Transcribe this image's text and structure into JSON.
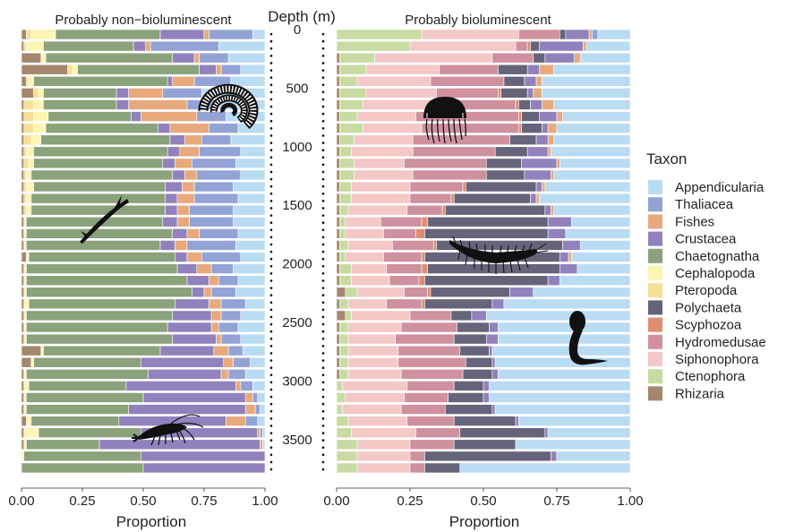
{
  "chart_data": {
    "type": "bar",
    "orientation": "horizontal-stacked-proportion",
    "xlabel": "Proportion",
    "x_ticks": [
      "0.00",
      "0.25",
      "0.50",
      "0.75",
      "1.00"
    ],
    "xlim": [
      0,
      1
    ],
    "depth_label": "Depth (m)",
    "depth_ticks": [
      "0",
      "500",
      "1000",
      "1500",
      "2000",
      "2500",
      "3000",
      "3500"
    ],
    "depth_tick_values": [
      0,
      500,
      1000,
      1500,
      2000,
      2500,
      3000,
      3500
    ],
    "depth_range": [
      0,
      3800
    ],
    "bin_size": 100,
    "legend_title": "Taxon",
    "legend_position": "right",
    "taxa": [
      {
        "name": "Appendicularia",
        "color": "#b9dcf3"
      },
      {
        "name": "Thaliacea",
        "color": "#94a3d6"
      },
      {
        "name": "Fishes",
        "color": "#e8a97c"
      },
      {
        "name": "Crustacea",
        "color": "#9182bd"
      },
      {
        "name": "Chaetognatha",
        "color": "#8ba27c"
      },
      {
        "name": "Cephalopoda",
        "color": "#fcf5b3"
      },
      {
        "name": "Pteropoda",
        "color": "#f6df97"
      },
      {
        "name": "Polychaeta",
        "color": "#65647a"
      },
      {
        "name": "Scyphozoa",
        "color": "#df8c72"
      },
      {
        "name": "Hydromedusae",
        "color": "#cf919e"
      },
      {
        "name": "Siphonophora",
        "color": "#f3c8c7"
      },
      {
        "name": "Ctenophora",
        "color": "#c8dba2"
      },
      {
        "name": "Rhizaria",
        "color": "#a4876c"
      }
    ],
    "panels": [
      {
        "title": "Probably non−bioluminescent",
        "stack_order": [
          "Rhizaria",
          "Pteropoda",
          "Cephalopoda",
          "Chaetognatha",
          "Crustacea",
          "Fishes",
          "Thaliacea",
          "Appendicularia"
        ],
        "rows": [
          [
            0.02,
            0.02,
            0.1,
            0.43,
            0.18,
            0.02,
            0.18,
            0.05
          ],
          [
            0.01,
            0.01,
            0.07,
            0.37,
            0.05,
            0.02,
            0.28,
            0.19
          ],
          [
            0.08,
            0.0,
            0.02,
            0.52,
            0.09,
            0.02,
            0.12,
            0.15
          ],
          [
            0.19,
            0.02,
            0.02,
            0.5,
            0.07,
            0.02,
            0.08,
            0.1
          ],
          [
            0.02,
            0.01,
            0.02,
            0.55,
            0.02,
            0.09,
            0.15,
            0.14
          ],
          [
            0.05,
            0.02,
            0.02,
            0.3,
            0.05,
            0.14,
            0.16,
            0.26
          ],
          [
            0.01,
            0.04,
            0.04,
            0.3,
            0.05,
            0.24,
            0.13,
            0.19
          ],
          [
            0.01,
            0.04,
            0.06,
            0.34,
            0.04,
            0.23,
            0.12,
            0.16
          ],
          [
            0.01,
            0.04,
            0.05,
            0.46,
            0.05,
            0.16,
            0.12,
            0.11
          ],
          [
            0.01,
            0.03,
            0.04,
            0.53,
            0.06,
            0.07,
            0.12,
            0.14
          ],
          [
            0.01,
            0.01,
            0.03,
            0.55,
            0.05,
            0.08,
            0.17,
            0.1
          ],
          [
            0.01,
            0.02,
            0.02,
            0.53,
            0.05,
            0.07,
            0.18,
            0.12
          ],
          [
            0.01,
            0.01,
            0.02,
            0.58,
            0.05,
            0.05,
            0.18,
            0.1
          ],
          [
            0.01,
            0.01,
            0.03,
            0.54,
            0.07,
            0.05,
            0.16,
            0.13
          ],
          [
            0.01,
            0.01,
            0.02,
            0.55,
            0.05,
            0.07,
            0.18,
            0.11
          ],
          [
            0.01,
            0.01,
            0.02,
            0.55,
            0.05,
            0.05,
            0.18,
            0.13
          ],
          [
            0.01,
            0.0,
            0.01,
            0.56,
            0.06,
            0.05,
            0.18,
            0.13
          ],
          [
            0.01,
            0.0,
            0.01,
            0.6,
            0.06,
            0.05,
            0.16,
            0.11
          ],
          [
            0.01,
            0.0,
            0.01,
            0.55,
            0.06,
            0.05,
            0.2,
            0.12
          ],
          [
            0.02,
            0.0,
            0.01,
            0.6,
            0.05,
            0.06,
            0.16,
            0.1
          ],
          [
            0.01,
            0.0,
            0.01,
            0.62,
            0.08,
            0.06,
            0.09,
            0.13
          ],
          [
            0.01,
            0.0,
            0.01,
            0.66,
            0.09,
            0.04,
            0.08,
            0.11
          ],
          [
            0.01,
            0.0,
            0.01,
            0.68,
            0.05,
            0.03,
            0.1,
            0.12
          ],
          [
            0.01,
            0.0,
            0.02,
            0.6,
            0.14,
            0.05,
            0.1,
            0.08
          ],
          [
            0.01,
            0.0,
            0.01,
            0.6,
            0.16,
            0.04,
            0.08,
            0.1
          ],
          [
            0.01,
            0.0,
            0.01,
            0.58,
            0.18,
            0.03,
            0.08,
            0.11
          ],
          [
            0.01,
            0.0,
            0.01,
            0.6,
            0.18,
            0.02,
            0.08,
            0.1
          ],
          [
            0.08,
            0.0,
            0.01,
            0.48,
            0.22,
            0.06,
            0.06,
            0.09
          ],
          [
            0.04,
            0.0,
            0.01,
            0.44,
            0.34,
            0.04,
            0.07,
            0.06
          ],
          [
            0.01,
            0.0,
            0.01,
            0.5,
            0.3,
            0.03,
            0.07,
            0.08
          ],
          [
            0.01,
            0.0,
            0.02,
            0.4,
            0.45,
            0.02,
            0.05,
            0.05
          ],
          [
            0.01,
            0.0,
            0.01,
            0.48,
            0.42,
            0.03,
            0.02,
            0.03
          ],
          [
            0.01,
            0.0,
            0.01,
            0.42,
            0.48,
            0.04,
            0.02,
            0.02
          ],
          [
            0.02,
            0.0,
            0.02,
            0.36,
            0.44,
            0.08,
            0.05,
            0.03
          ],
          [
            0.01,
            0.0,
            0.06,
            0.42,
            0.48,
            0.01,
            0.01,
            0.01
          ],
          [
            0.01,
            0.0,
            0.01,
            0.3,
            0.66,
            0.01,
            0.0,
            0.01
          ],
          [
            0.0,
            0.0,
            0.01,
            0.48,
            0.51,
            0.0,
            0.0,
            0.0
          ],
          [
            0.0,
            0.0,
            0.0,
            0.5,
            0.5,
            0.0,
            0.0,
            0.0
          ]
        ]
      },
      {
        "title": "Probably bioluminescent",
        "stack_order": [
          "Rhizaria",
          "Ctenophora",
          "Siphonophora",
          "Hydromedusae",
          "Scyphozoa",
          "Polychaeta",
          "Crustacea",
          "Fishes",
          "Thaliacea",
          "Appendicularia"
        ],
        "rows": [
          [
            0.0,
            0.29,
            0.33,
            0.14,
            0.0,
            0.02,
            0.08,
            0.01,
            0.02,
            0.11
          ],
          [
            0.0,
            0.25,
            0.36,
            0.04,
            0.01,
            0.03,
            0.15,
            0.01,
            0.0,
            0.15
          ],
          [
            0.01,
            0.12,
            0.4,
            0.14,
            0.0,
            0.04,
            0.1,
            0.02,
            0.0,
            0.17
          ],
          [
            0.01,
            0.09,
            0.25,
            0.2,
            0.0,
            0.1,
            0.04,
            0.05,
            0.0,
            0.26
          ],
          [
            0.01,
            0.06,
            0.25,
            0.25,
            0.0,
            0.07,
            0.04,
            0.02,
            0.0,
            0.3
          ],
          [
            0.01,
            0.09,
            0.24,
            0.21,
            0.01,
            0.09,
            0.02,
            0.03,
            0.0,
            0.3
          ],
          [
            0.01,
            0.08,
            0.26,
            0.26,
            0.01,
            0.04,
            0.04,
            0.04,
            0.0,
            0.26
          ],
          [
            0.01,
            0.06,
            0.2,
            0.35,
            0.01,
            0.06,
            0.06,
            0.02,
            0.0,
            0.23
          ],
          [
            0.01,
            0.08,
            0.2,
            0.33,
            0.01,
            0.07,
            0.02,
            0.03,
            0.0,
            0.25
          ],
          [
            0.01,
            0.05,
            0.2,
            0.33,
            0.0,
            0.09,
            0.04,
            0.02,
            0.0,
            0.26
          ],
          [
            0.01,
            0.04,
            0.21,
            0.28,
            0.0,
            0.11,
            0.07,
            0.01,
            0.0,
            0.27
          ],
          [
            0.01,
            0.05,
            0.17,
            0.28,
            0.0,
            0.12,
            0.12,
            0.01,
            0.0,
            0.24
          ],
          [
            0.01,
            0.05,
            0.2,
            0.25,
            0.0,
            0.13,
            0.09,
            0.01,
            0.0,
            0.26
          ],
          [
            0.01,
            0.04,
            0.2,
            0.18,
            0.01,
            0.24,
            0.02,
            0.01,
            0.0,
            0.29
          ],
          [
            0.01,
            0.04,
            0.2,
            0.14,
            0.01,
            0.26,
            0.02,
            0.01,
            0.0,
            0.31
          ],
          [
            0.01,
            0.03,
            0.2,
            0.12,
            0.01,
            0.34,
            0.02,
            0.01,
            0.0,
            0.26
          ],
          [
            0.01,
            0.02,
            0.12,
            0.14,
            0.02,
            0.41,
            0.08,
            0.0,
            0.0,
            0.2
          ],
          [
            0.01,
            0.02,
            0.13,
            0.11,
            0.03,
            0.42,
            0.06,
            0.0,
            0.0,
            0.22
          ],
          [
            0.01,
            0.03,
            0.15,
            0.14,
            0.01,
            0.43,
            0.06,
            0.0,
            0.0,
            0.17
          ],
          [
            0.01,
            0.02,
            0.13,
            0.13,
            0.01,
            0.46,
            0.03,
            0.01,
            0.0,
            0.2
          ],
          [
            0.01,
            0.04,
            0.12,
            0.12,
            0.02,
            0.45,
            0.06,
            0.0,
            0.0,
            0.18
          ],
          [
            0.01,
            0.04,
            0.13,
            0.1,
            0.02,
            0.42,
            0.04,
            0.0,
            0.0,
            0.24
          ],
          [
            0.03,
            0.04,
            0.16,
            0.08,
            0.01,
            0.27,
            0.08,
            0.0,
            0.0,
            0.33
          ],
          [
            0.01,
            0.03,
            0.13,
            0.12,
            0.01,
            0.23,
            0.04,
            0.0,
            0.0,
            0.43
          ],
          [
            0.03,
            0.02,
            0.2,
            0.14,
            0.0,
            0.07,
            0.05,
            0.0,
            0.0,
            0.49
          ],
          [
            0.01,
            0.03,
            0.18,
            0.19,
            0.0,
            0.11,
            0.03,
            0.0,
            0.0,
            0.45
          ],
          [
            0.01,
            0.03,
            0.16,
            0.2,
            0.0,
            0.11,
            0.04,
            0.0,
            0.0,
            0.45
          ],
          [
            0.01,
            0.03,
            0.17,
            0.21,
            0.0,
            0.1,
            0.01,
            0.0,
            0.0,
            0.47
          ],
          [
            0.01,
            0.03,
            0.17,
            0.23,
            0.0,
            0.09,
            0.01,
            0.0,
            0.0,
            0.46
          ],
          [
            0.01,
            0.03,
            0.18,
            0.21,
            0.0,
            0.1,
            0.02,
            0.0,
            0.0,
            0.45
          ],
          [
            0.0,
            0.02,
            0.22,
            0.16,
            0.0,
            0.1,
            0.02,
            0.0,
            0.0,
            0.48
          ],
          [
            0.0,
            0.03,
            0.2,
            0.15,
            0.0,
            0.12,
            0.02,
            0.0,
            0.0,
            0.48
          ],
          [
            0.0,
            0.02,
            0.2,
            0.15,
            0.0,
            0.16,
            0.01,
            0.0,
            0.0,
            0.46
          ],
          [
            0.0,
            0.04,
            0.2,
            0.16,
            0.0,
            0.21,
            0.01,
            0.0,
            0.0,
            0.38
          ],
          [
            0.0,
            0.05,
            0.22,
            0.15,
            0.0,
            0.29,
            0.01,
            0.0,
            0.0,
            0.28
          ],
          [
            0.0,
            0.07,
            0.18,
            0.15,
            0.0,
            0.21,
            0.0,
            0.0,
            0.0,
            0.39
          ],
          [
            0.0,
            0.07,
            0.18,
            0.05,
            0.0,
            0.43,
            0.02,
            0.0,
            0.0,
            0.25
          ],
          [
            0.0,
            0.07,
            0.18,
            0.05,
            0.0,
            0.12,
            0.0,
            0.0,
            0.0,
            0.58
          ]
        ]
      }
    ],
    "silhouettes": [
      {
        "panel": 0,
        "name": "rhizaria-silhouette-icon"
      },
      {
        "panel": 0,
        "name": "chaetognath-silhouette-icon"
      },
      {
        "panel": 0,
        "name": "crustacean-silhouette-icon"
      },
      {
        "panel": 1,
        "name": "jellyfish-silhouette-icon"
      },
      {
        "panel": 1,
        "name": "polychaete-silhouette-icon"
      },
      {
        "panel": 1,
        "name": "appendicularian-silhouette-icon"
      }
    ]
  }
}
